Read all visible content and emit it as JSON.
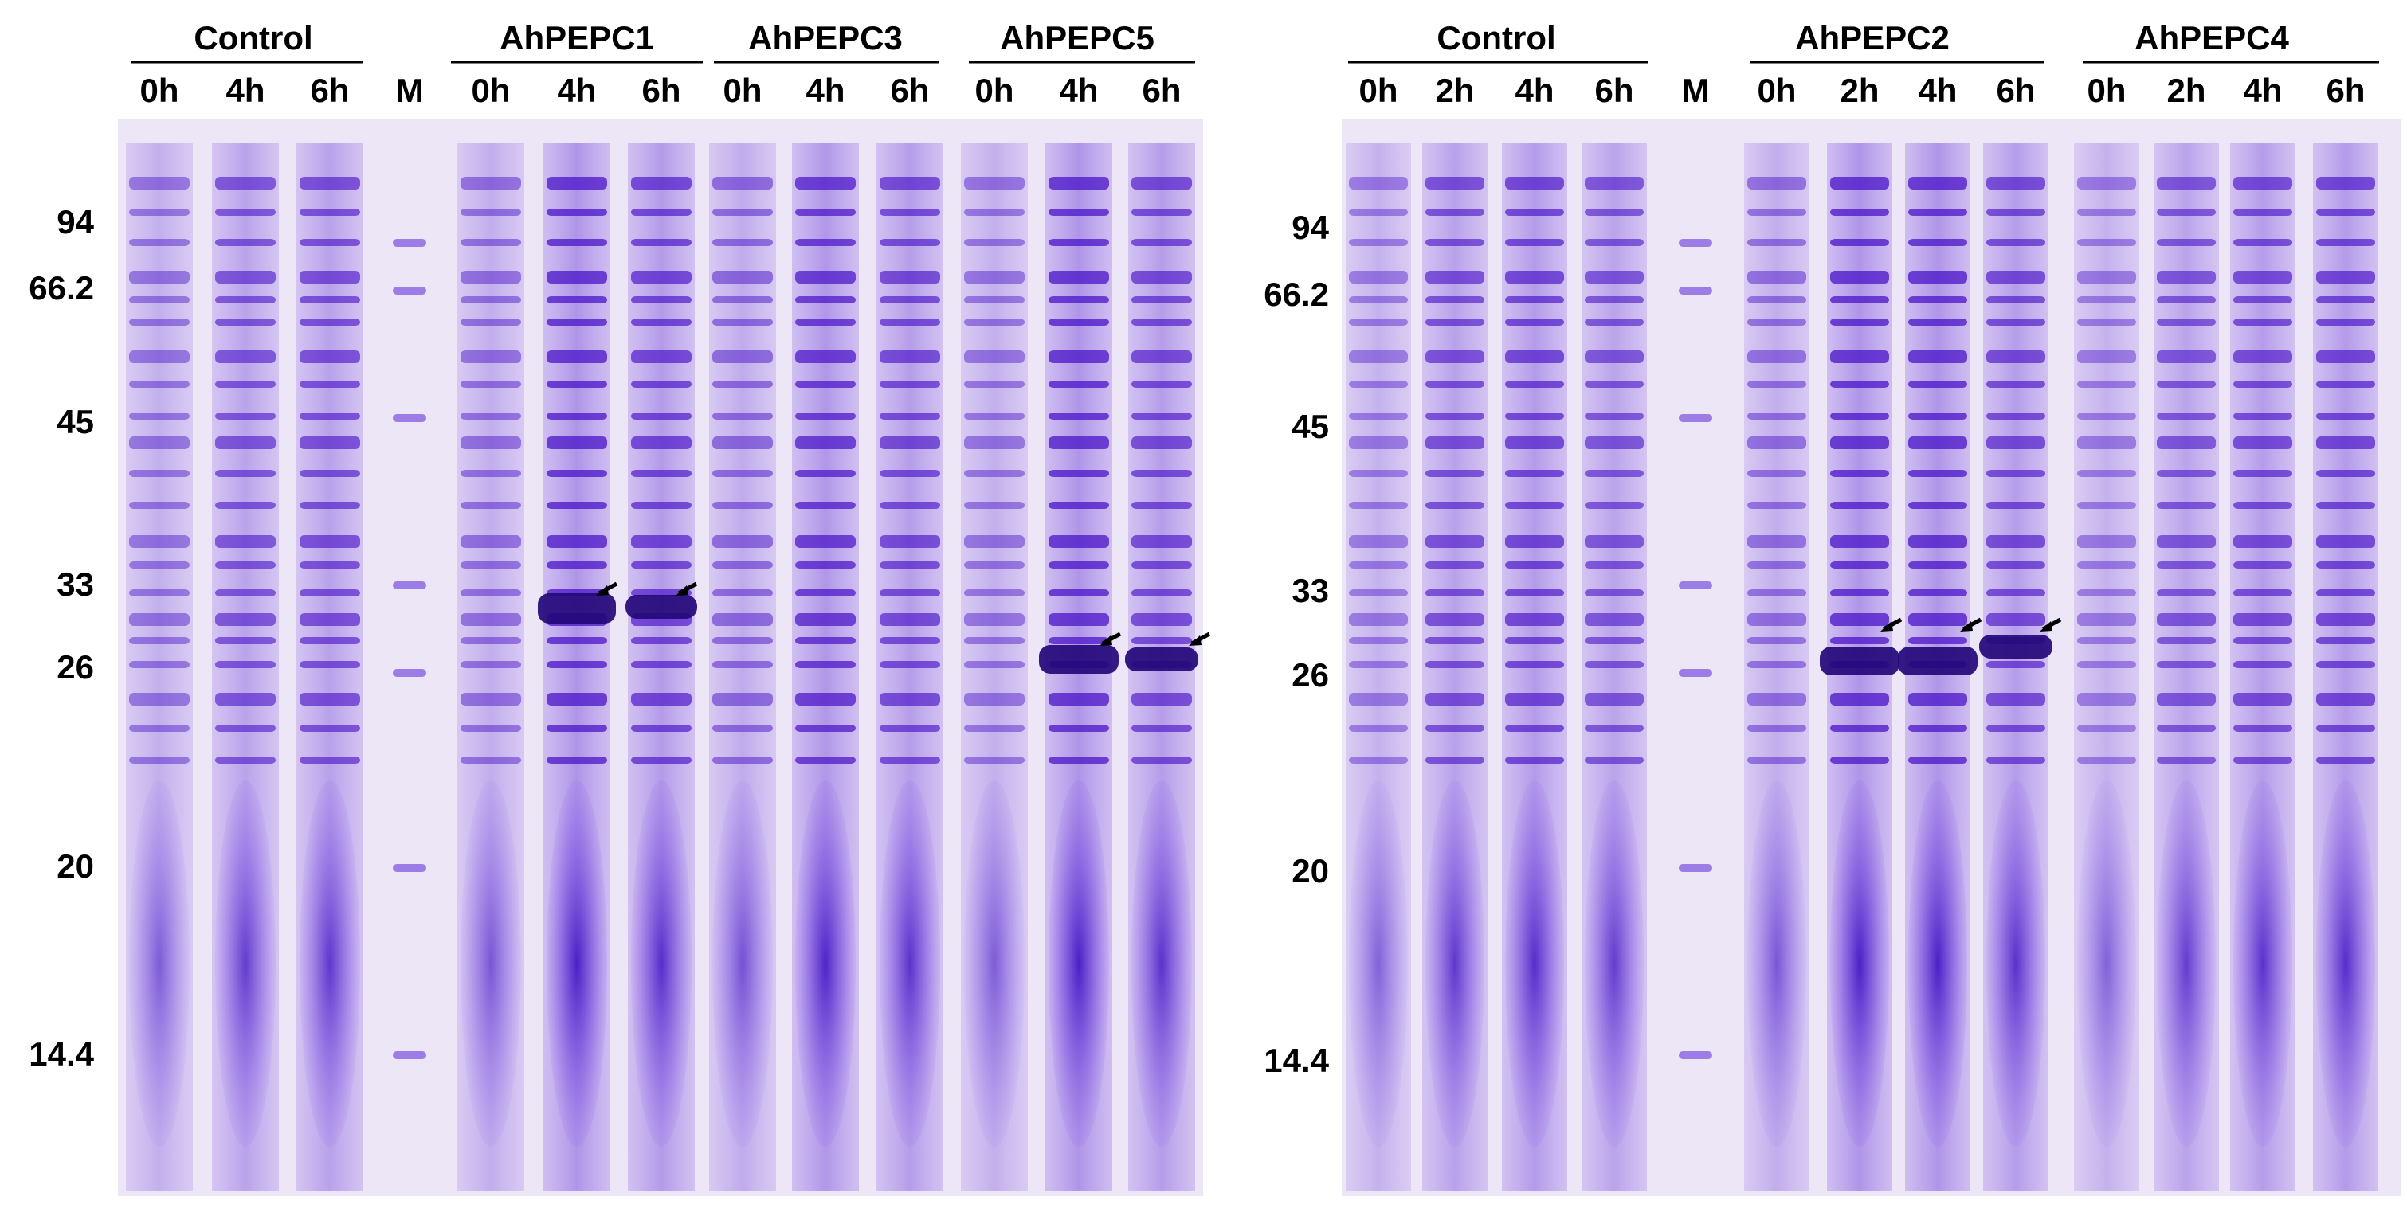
{
  "left_panel": {
    "groups": [
      {
        "name": "Control",
        "lanes": [
          "0h",
          "4h",
          "6h"
        ]
      },
      {
        "name": "AhPEPC1",
        "lanes": [
          "0h",
          "4h",
          "6h"
        ]
      },
      {
        "name": "AhPEPC3",
        "lanes": [
          "0h",
          "4h",
          "6h"
        ]
      },
      {
        "name": "AhPEPC5",
        "lanes": [
          "0h",
          "4h",
          "6h"
        ]
      }
    ],
    "marker_label": "M",
    "mw_labels": [
      "94",
      "66.2",
      "45",
      "33",
      "26",
      "20",
      "14.4"
    ]
  },
  "right_panel": {
    "groups": [
      {
        "name": "Control",
        "lanes": [
          "0h",
          "2h",
          "4h",
          "6h"
        ]
      },
      {
        "name": "AhPEPC2",
        "lanes": [
          "0h",
          "2h",
          "4h",
          "6h"
        ]
      },
      {
        "name": "AhPEPC4",
        "lanes": [
          "0h",
          "2h",
          "4h",
          "6h"
        ]
      }
    ],
    "marker_label": "M",
    "mw_labels": [
      "94",
      "66.2",
      "45",
      "33",
      "26",
      "20",
      "14.4"
    ]
  },
  "colors": {
    "gel_background": "#ece6f6",
    "band_stain": "#5a20d2",
    "band_dark": "#2a0a8a",
    "arrow": "#000000"
  }
}
